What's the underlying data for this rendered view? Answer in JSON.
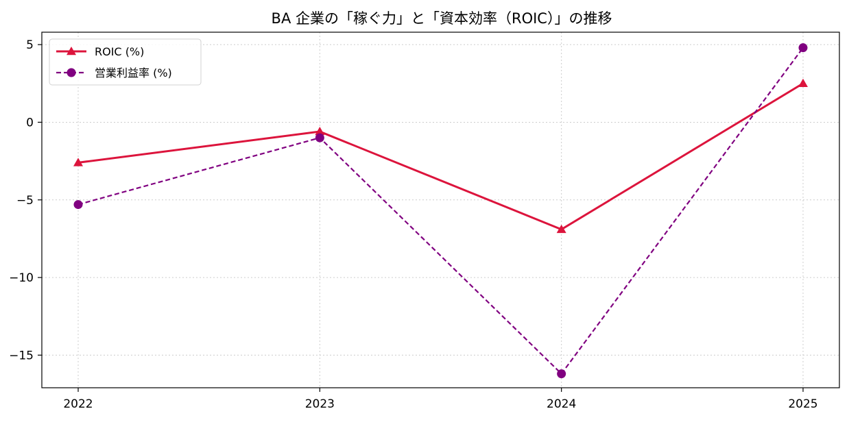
{
  "chart_data": {
    "type": "line",
    "title": "BA 企業の「稼ぐ力」と「資本効率（ROIC）」の推移",
    "xlabel": "",
    "ylabel": "",
    "categories": [
      "2022",
      "2023",
      "2024",
      "2025"
    ],
    "ylim": [
      -17.1,
      5.8
    ],
    "yticks": [
      5,
      0,
      -5,
      -10,
      -15
    ],
    "ytick_labels": [
      "5",
      "0",
      "−5",
      "−10",
      "−15"
    ],
    "grid": true,
    "legend": "upper-left",
    "series": [
      {
        "name": "ROIC (%)",
        "values": [
          -2.6,
          -0.6,
          -6.9,
          2.5
        ],
        "color": "#dc143c",
        "line_style": "solid",
        "marker": "triangle"
      },
      {
        "name": "営業利益率 (%)",
        "values": [
          -5.3,
          -1.0,
          -16.2,
          4.8
        ],
        "color": "#800080",
        "line_style": "dashed",
        "marker": "circle"
      }
    ]
  }
}
